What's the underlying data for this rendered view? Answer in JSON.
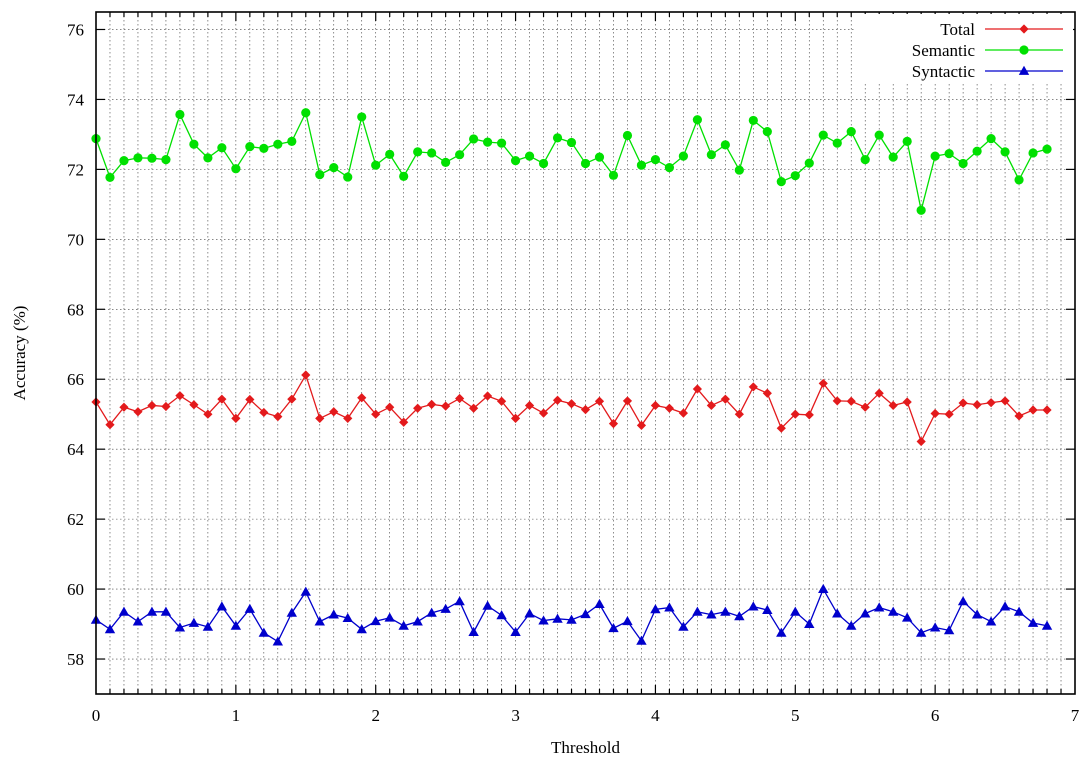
{
  "chart_data": {
    "type": "line",
    "title": "",
    "xlabel": "Threshold",
    "ylabel": "Accuracy (%)",
    "xlim": [
      0,
      7
    ],
    "ylim": [
      57,
      76.5
    ],
    "xticks": [
      0,
      1,
      2,
      3,
      4,
      5,
      6,
      7
    ],
    "yticks": [
      58,
      60,
      62,
      64,
      66,
      68,
      70,
      72,
      74,
      76
    ],
    "x_minor_step": 0.1,
    "grid": true,
    "legend_position": "top-right",
    "x": [
      0,
      0.1,
      0.2,
      0.3,
      0.4,
      0.5,
      0.6,
      0.7,
      0.8,
      0.9,
      1.0,
      1.1,
      1.2,
      1.3,
      1.4,
      1.5,
      1.6,
      1.7,
      1.8,
      1.9,
      2.0,
      2.1,
      2.2,
      2.3,
      2.4,
      2.5,
      2.6,
      2.7,
      2.8,
      2.9,
      3.0,
      3.1,
      3.2,
      3.3,
      3.4,
      3.5,
      3.6,
      3.7,
      3.8,
      3.9,
      4.0,
      4.1,
      4.2,
      4.3,
      4.4,
      4.5,
      4.6,
      4.7,
      4.8,
      4.9,
      5.0,
      5.1,
      5.2,
      5.3,
      5.4,
      5.5,
      5.6,
      5.7,
      5.8,
      5.9,
      6.0,
      6.1,
      6.2,
      6.3,
      6.4,
      6.5,
      6.6,
      6.7,
      6.8
    ],
    "series": [
      {
        "name": "Total",
        "color": "#e31a1c",
        "marker": "diamond",
        "values": [
          65.35,
          64.7,
          65.2,
          65.07,
          65.25,
          65.22,
          65.53,
          65.27,
          65.0,
          65.43,
          64.88,
          65.42,
          65.05,
          64.93,
          65.43,
          66.12,
          64.88,
          65.07,
          64.88,
          65.47,
          65.0,
          65.2,
          64.77,
          65.17,
          65.28,
          65.23,
          65.45,
          65.17,
          65.52,
          65.37,
          64.88,
          65.25,
          65.03,
          65.4,
          65.3,
          65.13,
          65.37,
          64.73,
          65.38,
          64.68,
          65.25,
          65.17,
          65.03,
          65.72,
          65.25,
          65.43,
          65.0,
          65.78,
          65.6,
          64.6,
          65.0,
          64.98,
          65.88,
          65.38,
          65.37,
          65.2,
          65.6,
          65.25,
          65.35,
          64.22,
          65.02,
          65.0,
          65.32,
          65.27,
          65.33,
          65.38,
          64.95,
          65.12,
          65.12
        ]
      },
      {
        "name": "Semantic",
        "color": "#00e000",
        "marker": "circle",
        "values": [
          72.88,
          71.77,
          72.25,
          72.33,
          72.32,
          72.28,
          73.57,
          72.72,
          72.33,
          72.62,
          72.02,
          72.65,
          72.6,
          72.72,
          72.8,
          73.62,
          71.85,
          72.05,
          71.78,
          73.5,
          72.12,
          72.43,
          71.8,
          72.5,
          72.47,
          72.2,
          72.42,
          72.87,
          72.78,
          72.75,
          72.25,
          72.38,
          72.17,
          72.9,
          72.77,
          72.17,
          72.35,
          71.83,
          72.97,
          72.12,
          72.28,
          72.05,
          72.38,
          73.42,
          72.42,
          72.7,
          71.98,
          73.4,
          73.08,
          71.65,
          71.82,
          72.18,
          72.98,
          72.75,
          73.08,
          72.28,
          72.98,
          72.35,
          72.8,
          70.83,
          72.38,
          72.45,
          72.17,
          72.52,
          72.88,
          72.5,
          71.7,
          72.47,
          72.58
        ]
      },
      {
        "name": "Syntactic",
        "color": "#0000cc",
        "marker": "triangle",
        "values": [
          59.12,
          58.85,
          59.35,
          59.07,
          59.35,
          59.35,
          58.9,
          59.03,
          58.92,
          59.5,
          58.95,
          59.43,
          58.75,
          58.5,
          59.32,
          59.92,
          59.07,
          59.27,
          59.17,
          58.85,
          59.08,
          59.18,
          58.95,
          59.07,
          59.32,
          59.43,
          59.65,
          58.77,
          59.52,
          59.25,
          58.77,
          59.3,
          59.1,
          59.15,
          59.12,
          59.28,
          59.57,
          58.88,
          59.08,
          58.52,
          59.42,
          59.47,
          58.92,
          59.35,
          59.27,
          59.35,
          59.22,
          59.5,
          59.4,
          58.75,
          59.35,
          59.0,
          60.0,
          59.3,
          58.95,
          59.3,
          59.47,
          59.35,
          59.18,
          58.75,
          58.9,
          58.82,
          59.65,
          59.27,
          59.07,
          59.5,
          59.35,
          59.03,
          58.95
        ]
      }
    ]
  }
}
